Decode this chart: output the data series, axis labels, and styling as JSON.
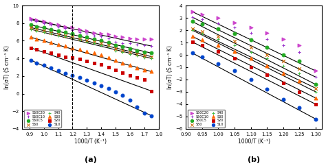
{
  "panel_a": {
    "xlabel": "1000/T (K⁻¹)",
    "ylabel": "ln(σT) (S cm⁻¹ K)",
    "label": "(a)",
    "xlim": [
      0.85,
      1.8
    ],
    "ylim": [
      -4,
      10
    ],
    "xticks": [
      0.9,
      1.0,
      1.1,
      1.2,
      1.3,
      1.4,
      1.5,
      1.6,
      1.7,
      1.8
    ],
    "yticks": [
      -4,
      -2,
      0,
      2,
      4,
      6,
      8,
      10
    ],
    "series": [
      {
        "label": "S50C20",
        "color": "#cc44cc",
        "marker": ">",
        "scatter_x": [
          0.91,
          0.95,
          1.0,
          1.05,
          1.1,
          1.15,
          1.2,
          1.25,
          1.3,
          1.35,
          1.4,
          1.45,
          1.5,
          1.55,
          1.6,
          1.65,
          1.7,
          1.75
        ],
        "scatter_y": [
          8.5,
          8.4,
          8.2,
          8.0,
          7.8,
          7.6,
          7.5,
          7.3,
          7.1,
          6.9,
          6.8,
          6.7,
          6.5,
          6.4,
          6.3,
          6.2,
          6.2,
          6.2
        ],
        "line_x": [
          0.91,
          1.18
        ],
        "line_y": [
          8.5,
          7.4
        ],
        "line2_x": [
          1.18,
          1.75
        ],
        "line2_y": [
          7.4,
          6.2
        ],
        "dashed": false
      },
      {
        "label": "S50C10",
        "color": "#9933cc",
        "marker": "+",
        "scatter_x": [
          0.91,
          0.95,
          1.0,
          1.05,
          1.1,
          1.15,
          1.2,
          1.25,
          1.3,
          1.35,
          1.4,
          1.45,
          1.5,
          1.55,
          1.6,
          1.65,
          1.7,
          1.75
        ],
        "scatter_y": [
          8.4,
          8.2,
          8.0,
          7.8,
          7.6,
          7.4,
          7.2,
          7.0,
          6.8,
          6.6,
          6.5,
          6.3,
          5.9,
          5.7,
          5.7,
          5.6,
          5.5,
          5.4
        ],
        "line_x": [
          0.91,
          1.75
        ],
        "line_y": [
          8.4,
          5.4
        ]
      },
      {
        "label": "S50C5",
        "color": "#22aa22",
        "marker": "o",
        "scatter_x": [
          0.91,
          0.95,
          1.0,
          1.05,
          1.1,
          1.15,
          1.2,
          1.25,
          1.3,
          1.35,
          1.4,
          1.45,
          1.5,
          1.55,
          1.6,
          1.65,
          1.7,
          1.75
        ],
        "scatter_y": [
          7.8,
          7.6,
          7.5,
          7.3,
          7.1,
          7.0,
          6.8,
          6.6,
          6.4,
          6.2,
          6.0,
          5.8,
          5.5,
          5.3,
          5.1,
          4.9,
          4.7,
          4.6
        ],
        "line_x": [
          0.91,
          1.75
        ],
        "line_y": [
          7.8,
          4.6
        ]
      },
      {
        "label": "S50",
        "color": "#cc6600",
        "marker": "x",
        "scatter_x": [
          0.91,
          0.95,
          1.0,
          1.05,
          1.1,
          1.15,
          1.2,
          1.25,
          1.3,
          1.35,
          1.4,
          1.45,
          1.5,
          1.55,
          1.6,
          1.65,
          1.7,
          1.75
        ],
        "scatter_y": [
          7.5,
          7.3,
          7.1,
          6.9,
          6.7,
          6.6,
          6.4,
          6.2,
          6.0,
          5.9,
          5.7,
          5.5,
          5.1,
          4.9,
          4.7,
          4.5,
          4.3,
          4.2
        ],
        "line_x": [
          0.91,
          1.75
        ],
        "line_y": [
          7.5,
          4.2
        ]
      },
      {
        "label": "S40",
        "color": "#44bb44",
        "marker": "+",
        "scatter_x": [
          0.91,
          0.95,
          1.0,
          1.05,
          1.1,
          1.15,
          1.2,
          1.25,
          1.3,
          1.35,
          1.4,
          1.45,
          1.5,
          1.55,
          1.6,
          1.65,
          1.7,
          1.75
        ],
        "scatter_y": [
          7.3,
          7.1,
          7.0,
          6.8,
          6.6,
          6.5,
          6.3,
          6.1,
          5.9,
          5.7,
          5.5,
          5.3,
          4.9,
          4.7,
          4.5,
          4.3,
          4.1,
          4.0
        ],
        "line_x": [
          0.91,
          1.75
        ],
        "line_y": [
          7.3,
          4.0
        ]
      },
      {
        "label": "S30",
        "color": "#ff6600",
        "marker": "^",
        "scatter_x": [
          0.91,
          0.95,
          1.0,
          1.05,
          1.1,
          1.15,
          1.2,
          1.25,
          1.3,
          1.35,
          1.4,
          1.45,
          1.5,
          1.55,
          1.6,
          1.65,
          1.7,
          1.75
        ],
        "scatter_y": [
          6.4,
          6.2,
          6.0,
          5.8,
          5.6,
          5.4,
          5.2,
          5.0,
          4.8,
          4.6,
          4.4,
          4.1,
          3.8,
          3.5,
          3.2,
          2.9,
          2.7,
          2.5
        ],
        "line_x": [
          0.91,
          1.75
        ],
        "line_y": [
          6.4,
          2.5
        ]
      },
      {
        "label": "S20",
        "color": "#cc0000",
        "marker": "s",
        "scatter_x": [
          0.91,
          0.95,
          1.0,
          1.05,
          1.1,
          1.15,
          1.2,
          1.25,
          1.3,
          1.35,
          1.4,
          1.45,
          1.5,
          1.55,
          1.6,
          1.65,
          1.7,
          1.75
        ],
        "scatter_y": [
          5.2,
          5.0,
          4.8,
          4.6,
          4.4,
          4.2,
          4.1,
          3.9,
          3.7,
          3.5,
          3.3,
          3.0,
          2.7,
          2.4,
          2.1,
          1.8,
          1.6,
          0.3
        ],
        "line_x": [
          0.91,
          1.75
        ],
        "line_y": [
          5.2,
          0.3
        ]
      },
      {
        "label": "S10",
        "color": "#0044cc",
        "marker": "o",
        "scatter_x": [
          0.91,
          0.95,
          1.0,
          1.05,
          1.1,
          1.15,
          1.2,
          1.25,
          1.3,
          1.35,
          1.4,
          1.45,
          1.5,
          1.55,
          1.6,
          1.65,
          1.7,
          1.75
        ],
        "scatter_y": [
          3.8,
          3.5,
          3.2,
          2.9,
          2.6,
          2.3,
          2.1,
          1.8,
          1.5,
          1.2,
          0.9,
          0.6,
          0.2,
          -0.2,
          -0.7,
          -1.5,
          -2.2,
          -2.5
        ],
        "line_x": [
          0.91,
          1.75
        ],
        "line_y": [
          3.8,
          -2.5
        ]
      }
    ]
  },
  "panel_b": {
    "xlabel": "1000/T (K⁻¹)",
    "ylabel": "ln(σT) (S cm⁻¹ K)",
    "label": "(b)",
    "xlim": [
      0.9,
      1.32
    ],
    "ylim": [
      -6,
      4
    ],
    "xticks": [
      0.9,
      0.95,
      1.0,
      1.05,
      1.1,
      1.15,
      1.2,
      1.25,
      1.3
    ],
    "yticks": [
      -6,
      -5,
      -4,
      -3,
      -2,
      -1,
      0,
      1,
      2,
      3,
      4
    ],
    "series": [
      {
        "label": "S50C20",
        "color": "#cc44cc",
        "marker": ">",
        "scatter_x": [
          0.92,
          0.95,
          1.0,
          1.05,
          1.1,
          1.15,
          1.2,
          1.25,
          1.3
        ],
        "scatter_y": [
          3.5,
          3.3,
          3.0,
          2.6,
          2.2,
          1.8,
          1.3,
          0.8,
          -1.3
        ],
        "line_x": [
          0.92,
          1.3
        ],
        "line_y": [
          3.5,
          -1.3
        ]
      },
      {
        "label": "S50C10",
        "color": "#9933cc",
        "marker": "+",
        "scatter_x": [
          0.92,
          0.95,
          1.0,
          1.05,
          1.1,
          1.15,
          1.2,
          1.25,
          1.3
        ],
        "scatter_y": [
          3.05,
          2.9,
          2.55,
          2.2,
          1.8,
          1.3,
          0.8,
          0.2,
          -1.8
        ],
        "line_x": [
          0.92,
          1.3
        ],
        "line_y": [
          3.05,
          -1.8
        ]
      },
      {
        "label": "S50C5",
        "color": "#22aa22",
        "marker": "o",
        "scatter_x": [
          0.92,
          0.95,
          1.0,
          1.05,
          1.1,
          1.15,
          1.2,
          1.25,
          1.3
        ],
        "scatter_y": [
          2.7,
          2.5,
          2.1,
          1.7,
          1.2,
          0.6,
          0.0,
          -0.5,
          -2.4
        ],
        "line_x": [
          0.92,
          1.3
        ],
        "line_y": [
          2.7,
          -2.4
        ]
      },
      {
        "label": "S50",
        "color": "#cc6600",
        "marker": "x",
        "scatter_x": [
          0.92,
          0.95,
          1.0,
          1.05,
          1.1,
          1.15,
          1.2,
          1.25,
          1.3
        ],
        "scatter_y": [
          2.1,
          1.9,
          1.5,
          1.1,
          0.6,
          0.0,
          -0.5,
          -1.1,
          -2.7
        ],
        "line_x": [
          0.92,
          1.3
        ],
        "line_y": [
          2.1,
          -2.7
        ]
      },
      {
        "label": "S40",
        "color": "#44bb44",
        "marker": "+",
        "scatter_x": [
          0.92,
          0.95,
          1.0,
          1.05,
          1.1,
          1.15,
          1.2,
          1.25,
          1.3
        ],
        "scatter_y": [
          2.0,
          1.75,
          1.3,
          0.8,
          0.2,
          -0.3,
          -0.9,
          -1.5,
          -3.0
        ],
        "line_x": [
          0.92,
          1.3
        ],
        "line_y": [
          2.0,
          -3.0
        ]
      },
      {
        "label": "S30",
        "color": "#ff6600",
        "marker": "^",
        "scatter_x": [
          0.92,
          0.95,
          1.0,
          1.05,
          1.1,
          1.15,
          1.2,
          1.25,
          1.3
        ],
        "scatter_y": [
          1.5,
          1.25,
          0.8,
          0.3,
          -0.3,
          -0.9,
          -1.5,
          -2.1,
          -3.5
        ],
        "line_x": [
          0.92,
          1.3
        ],
        "line_y": [
          1.5,
          -3.5
        ]
      },
      {
        "label": "S20",
        "color": "#cc0000",
        "marker": "s",
        "scatter_x": [
          0.92,
          0.95,
          1.0,
          1.05,
          1.1,
          1.15,
          1.2,
          1.25,
          1.3
        ],
        "scatter_y": [
          1.05,
          0.8,
          0.3,
          -0.3,
          -1.0,
          -1.6,
          -2.3,
          -3.0,
          -4.0
        ],
        "line_x": [
          0.92,
          1.3
        ],
        "line_y": [
          1.05,
          -4.0
        ]
      },
      {
        "label": "S10",
        "color": "#0044cc",
        "marker": "o",
        "scatter_x": [
          0.92,
          0.95,
          1.0,
          1.05,
          1.1,
          1.15,
          1.2,
          1.25,
          1.3
        ],
        "scatter_y": [
          0.15,
          -0.15,
          -0.7,
          -1.3,
          -2.0,
          -2.8,
          -3.6,
          -4.3,
          -5.2
        ],
        "line_x": [
          0.92,
          1.3
        ],
        "line_y": [
          0.15,
          -5.2
        ]
      }
    ]
  },
  "legend": [
    {
      "label": "S50C20",
      "color": "#cc44cc",
      "marker": ">"
    },
    {
      "label": "S50C10",
      "color": "#9933cc",
      "marker": "+"
    },
    {
      "label": "S50C5",
      "color": "#22aa22",
      "marker": "o"
    },
    {
      "label": "S50",
      "color": "#cc6600",
      "marker": "x"
    },
    {
      "label": "S40",
      "color": "#44bb44",
      "marker": "+"
    },
    {
      "label": "S30",
      "color": "#ff6600",
      "marker": "^"
    },
    {
      "label": "S20",
      "color": "#cc0000",
      "marker": "s"
    },
    {
      "label": "S10",
      "color": "#0044cc",
      "marker": "o"
    }
  ]
}
